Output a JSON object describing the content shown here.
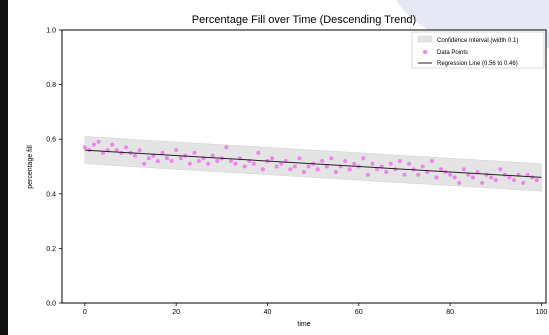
{
  "chart_data": {
    "type": "scatter",
    "title": "Percentage Fill over Time (Descending Trend)",
    "xlabel": "time",
    "ylabel": "percentage fill",
    "xlim": [
      -5,
      101
    ],
    "ylim": [
      0.0,
      1.0
    ],
    "x_ticks": [
      "0",
      "20",
      "40",
      "60",
      "80",
      "100"
    ],
    "y_ticks": [
      "0.0",
      "0.2",
      "0.4",
      "0.6",
      "0.8",
      "1.0"
    ],
    "grid": false,
    "legend_position": "top-right",
    "legend": {
      "band": "Confidence Interval (width 0.1)",
      "points": "Data Points",
      "line": "Regression Line (0.56 to 0.46)"
    },
    "regression": {
      "x": [
        0,
        100
      ],
      "y": [
        0.56,
        0.46
      ]
    },
    "confidence_band": {
      "x": [
        0,
        100
      ],
      "upper": [
        0.61,
        0.51
      ],
      "lower": [
        0.51,
        0.41
      ]
    },
    "series": [
      {
        "name": "Data Points",
        "color": "#ee82ee",
        "x": [
          0,
          1,
          2,
          3,
          4,
          5,
          6,
          7,
          8,
          9,
          10,
          11,
          12,
          13,
          14,
          15,
          16,
          17,
          18,
          19,
          20,
          21,
          22,
          23,
          24,
          25,
          26,
          27,
          28,
          29,
          30,
          31,
          32,
          33,
          34,
          35,
          36,
          37,
          38,
          39,
          40,
          41,
          42,
          43,
          44,
          45,
          46,
          47,
          48,
          49,
          50,
          51,
          52,
          53,
          54,
          55,
          56,
          57,
          58,
          59,
          60,
          61,
          62,
          63,
          64,
          65,
          66,
          67,
          68,
          69,
          70,
          71,
          72,
          73,
          74,
          75,
          76,
          77,
          78,
          79,
          80,
          81,
          82,
          83,
          84,
          85,
          86,
          87,
          88,
          89,
          90,
          91,
          92,
          93,
          94,
          95,
          96,
          97,
          98,
          99
        ],
        "y": [
          0.57,
          0.56,
          0.58,
          0.59,
          0.55,
          0.56,
          0.58,
          0.56,
          0.55,
          0.57,
          0.55,
          0.54,
          0.56,
          0.51,
          0.53,
          0.54,
          0.52,
          0.55,
          0.53,
          0.52,
          0.56,
          0.53,
          0.54,
          0.51,
          0.55,
          0.52,
          0.53,
          0.51,
          0.54,
          0.52,
          0.53,
          0.57,
          0.52,
          0.51,
          0.53,
          0.5,
          0.52,
          0.51,
          0.55,
          0.49,
          0.52,
          0.53,
          0.5,
          0.51,
          0.52,
          0.49,
          0.5,
          0.53,
          0.48,
          0.5,
          0.51,
          0.49,
          0.52,
          0.5,
          0.53,
          0.48,
          0.5,
          0.52,
          0.49,
          0.51,
          0.5,
          0.53,
          0.47,
          0.51,
          0.49,
          0.5,
          0.48,
          0.51,
          0.49,
          0.52,
          0.47,
          0.51,
          0.49,
          0.47,
          0.5,
          0.48,
          0.52,
          0.46,
          0.49,
          0.48,
          0.47,
          0.46,
          0.44,
          0.49,
          0.47,
          0.46,
          0.48,
          0.44,
          0.47,
          0.46,
          0.45,
          0.49,
          0.47,
          0.46,
          0.45,
          0.47,
          0.44,
          0.47,
          0.46,
          0.45
        ]
      }
    ],
    "colors": {
      "band": "#e4e4e4",
      "points": "#ee82ee",
      "line": "#222222",
      "axis": "#000000"
    }
  }
}
